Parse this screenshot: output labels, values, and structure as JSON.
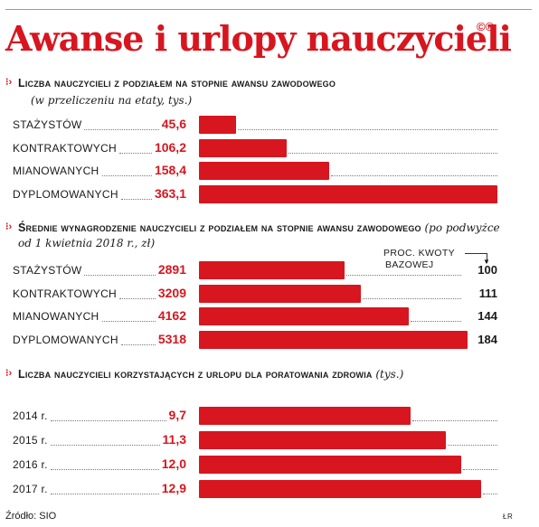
{
  "title": "Awanse i urlopy nauczycieli",
  "logo": "©℗",
  "chart_data": [
    {
      "type": "bar",
      "title": "Liczba nauczycieli z podziałem na stopnie awansu zawodowego",
      "subtitle": "(w przeliczeniu na etaty, tys.)",
      "categories": [
        "STAŻYSTÓW",
        "KONTRAKTOWYCH",
        "MIANOWANYCH",
        "DYPLOMOWANYCH"
      ],
      "values": [
        45.6,
        106.2,
        158.4,
        363.1
      ],
      "value_labels": [
        "45,6",
        "106,2",
        "158,4",
        "363,1"
      ],
      "xlim": [
        0,
        363.1
      ]
    },
    {
      "type": "bar",
      "title": "Średnie wynagrodzenie nauczycieli z podziałem na stopnie awansu zawodowego",
      "subtitle": "(po podwyżce od 1 kwietnia 2018 r., zł)",
      "categories": [
        "STAŻYSTÓW",
        "KONTRAKTOWYCH",
        "MIANOWANYCH",
        "DYPLOMOWANYCH"
      ],
      "values": [
        2891,
        3209,
        4162,
        5318
      ],
      "value_labels": [
        "2891",
        "3209",
        "4162",
        "5318"
      ],
      "xlim": [
        0,
        5610
      ],
      "extra_column": {
        "header": [
          "PROC. KWOTY",
          "BAZOWEJ"
        ],
        "values": [
          "100",
          "111",
          "144",
          "184"
        ]
      }
    },
    {
      "type": "bar",
      "title": "Liczba nauczycieli korzystających z urlopu dla poratowania zdrowia",
      "subtitle": "(tys.)",
      "categories": [
        "2014 r.",
        "2015 r.",
        "2016 r.",
        "2017 r."
      ],
      "values": [
        9.7,
        11.3,
        12.0,
        12.9
      ],
      "value_labels": [
        "9,7",
        "11,3",
        "12,0",
        "12,9"
      ],
      "xlim": [
        0,
        13.0
      ]
    }
  ],
  "source": "Źródło: SIO",
  "author": "ŁR"
}
